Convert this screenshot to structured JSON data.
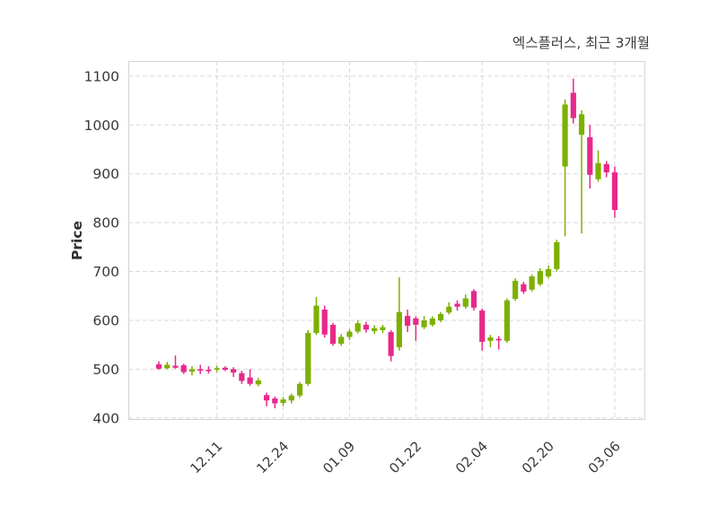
{
  "title": "엑스플러스, 최근 3개월",
  "ylabel": "Price",
  "colors": {
    "up": "#7db000",
    "down": "#e7298a",
    "grid": "#d9d9d9",
    "border": "#d4d4d4",
    "tick_text": "#3a3a3a",
    "title_text": "#3d3d3d",
    "background": "#ffffff"
  },
  "chart_data": {
    "type": "candlestick",
    "title": "엑스플러스, 최근 3개월",
    "xlabel": "",
    "ylabel": "Price",
    "ylim": [
      396,
      1131
    ],
    "yticks": [
      400,
      500,
      600,
      700,
      800,
      900,
      1000,
      1100
    ],
    "grid": true,
    "legend": "none",
    "xtick_labels": [
      "12.11",
      "12.24",
      "01.09",
      "01.22",
      "02.04",
      "02.20",
      "03.06"
    ],
    "xtick_indices": [
      7,
      15,
      23,
      31,
      39,
      47,
      55
    ],
    "ohlc_format": [
      "open",
      "high",
      "low",
      "close"
    ],
    "ohlc": [
      [
        510,
        516,
        499,
        501
      ],
      [
        502,
        515,
        500,
        509
      ],
      [
        507,
        528,
        501,
        503
      ],
      [
        508,
        511,
        490,
        494
      ],
      [
        495,
        506,
        487,
        500
      ],
      [
        500,
        509,
        490,
        497
      ],
      [
        499,
        506,
        491,
        496
      ],
      [
        499,
        507,
        494,
        502
      ],
      [
        503,
        506,
        496,
        499
      ],
      [
        500,
        504,
        484,
        493
      ],
      [
        492,
        497,
        470,
        476
      ],
      [
        483,
        500,
        466,
        470
      ],
      [
        469,
        482,
        465,
        477
      ],
      [
        447,
        452,
        424,
        436
      ],
      [
        440,
        444,
        420,
        430
      ],
      [
        431,
        443,
        425,
        438
      ],
      [
        436,
        450,
        430,
        446
      ],
      [
        446,
        474,
        442,
        470
      ],
      [
        470,
        580,
        466,
        574
      ],
      [
        574,
        648,
        570,
        630
      ],
      [
        622,
        630,
        565,
        571
      ],
      [
        591,
        595,
        548,
        552
      ],
      [
        552,
        572,
        548,
        566
      ],
      [
        566,
        582,
        560,
        577
      ],
      [
        577,
        600,
        573,
        594
      ],
      [
        591,
        597,
        575,
        581
      ],
      [
        578,
        590,
        572,
        584
      ],
      [
        580,
        591,
        574,
        586
      ],
      [
        576,
        580,
        516,
        527
      ],
      [
        545,
        688,
        538,
        617
      ],
      [
        609,
        622,
        576,
        589
      ],
      [
        604,
        608,
        558,
        591
      ],
      [
        586,
        609,
        582,
        600
      ],
      [
        591,
        608,
        587,
        604
      ],
      [
        600,
        617,
        596,
        613
      ],
      [
        616,
        637,
        612,
        628
      ],
      [
        634,
        641,
        620,
        628
      ],
      [
        628,
        653,
        624,
        645
      ],
      [
        660,
        664,
        620,
        626
      ],
      [
        620,
        624,
        538,
        556
      ],
      [
        558,
        570,
        545,
        565
      ],
      [
        562,
        568,
        540,
        559
      ],
      [
        558,
        645,
        554,
        641
      ],
      [
        644,
        686,
        640,
        681
      ],
      [
        674,
        679,
        654,
        659
      ],
      [
        663,
        694,
        659,
        690
      ],
      [
        674,
        707,
        670,
        701
      ],
      [
        690,
        712,
        686,
        705
      ],
      [
        705,
        765,
        700,
        760
      ],
      [
        915,
        1052,
        772,
        1042
      ],
      [
        1066,
        1095,
        1003,
        1014
      ],
      [
        980,
        1030,
        778,
        1022
      ],
      [
        975,
        1000,
        870,
        898
      ],
      [
        889,
        948,
        884,
        922
      ],
      [
        920,
        926,
        893,
        903
      ],
      [
        903,
        915,
        810,
        826
      ]
    ]
  }
}
